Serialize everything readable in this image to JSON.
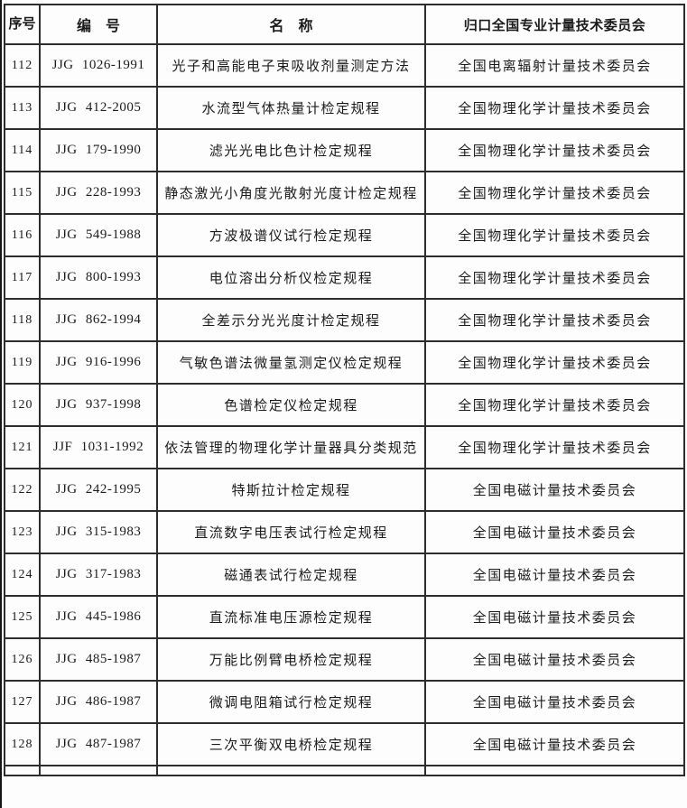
{
  "table": {
    "headers": {
      "seq": "序号",
      "code": "编　号",
      "name": "名　称",
      "committee": "归口全国专业计量技术委员会"
    },
    "rows": [
      {
        "seq": "112",
        "code": "JJG 1026-1991",
        "name": "光子和高能电子束吸收剂量测定方法",
        "committee": "全国电离辐射计量技术委员会"
      },
      {
        "seq": "113",
        "code": "JJG 412-2005",
        "name": "水流型气体热量计检定规程",
        "committee": "全国物理化学计量技术委员会"
      },
      {
        "seq": "114",
        "code": "JJG 179-1990",
        "name": "滤光光电比色计检定规程",
        "committee": "全国物理化学计量技术委员会"
      },
      {
        "seq": "115",
        "code": "JJG 228-1993",
        "name": "静态激光小角度光散射光度计检定规程",
        "committee": "全国物理化学计量技术委员会"
      },
      {
        "seq": "116",
        "code": "JJG 549-1988",
        "name": "方波极谱仪试行检定规程",
        "committee": "全国物理化学计量技术委员会"
      },
      {
        "seq": "117",
        "code": "JJG 800-1993",
        "name": "电位溶出分析仪检定规程",
        "committee": "全国物理化学计量技术委员会"
      },
      {
        "seq": "118",
        "code": "JJG 862-1994",
        "name": "全差示分光光度计检定规程",
        "committee": "全国物理化学计量技术委员会"
      },
      {
        "seq": "119",
        "code": "JJG 916-1996",
        "name": "气敏色谱法微量氢测定仪检定规程",
        "committee": "全国物理化学计量技术委员会"
      },
      {
        "seq": "120",
        "code": "JJG 937-1998",
        "name": "色谱检定仪检定规程",
        "committee": "全国物理化学计量技术委员会"
      },
      {
        "seq": "121",
        "code": "JJF 1031-1992",
        "name": "依法管理的物理化学计量器具分类规范",
        "committee": "全国物理化学计量技术委员会"
      },
      {
        "seq": "122",
        "code": "JJG 242-1995",
        "name": "特斯拉计检定规程",
        "committee": "全国电磁计量技术委员会"
      },
      {
        "seq": "123",
        "code": "JJG 315-1983",
        "name": "直流数字电压表试行检定规程",
        "committee": "全国电磁计量技术委员会"
      },
      {
        "seq": "124",
        "code": "JJG 317-1983",
        "name": "磁通表试行检定规程",
        "committee": "全国电磁计量技术委员会"
      },
      {
        "seq": "125",
        "code": "JJG 445-1986",
        "name": "直流标准电压源检定规程",
        "committee": "全国电磁计量技术委员会"
      },
      {
        "seq": "126",
        "code": "JJG 485-1987",
        "name": "万能比例臂电桥检定规程",
        "committee": "全国电磁计量技术委员会"
      },
      {
        "seq": "127",
        "code": "JJG 486-1987",
        "name": "微调电阻箱试行检定规程",
        "committee": "全国电磁计量技术委员会"
      },
      {
        "seq": "128",
        "code": "JJG 487-1987",
        "name": "三次平衡双电桥检定规程",
        "committee": "全国电磁计量技术委员会"
      }
    ]
  }
}
